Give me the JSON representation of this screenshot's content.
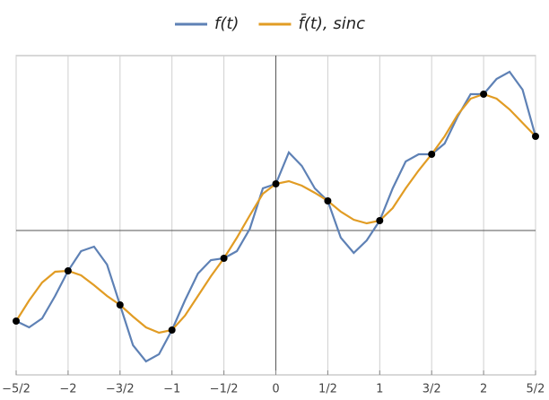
{
  "chart_data": {
    "type": "line",
    "x": [
      -2.5,
      -2.375,
      -2.25,
      -2.125,
      -2,
      -1.875,
      -1.75,
      -1.625,
      -1.5,
      -1.375,
      -1.25,
      -1.125,
      -1,
      -0.875,
      -0.75,
      -0.625,
      -0.5,
      -0.375,
      -0.25,
      -0.125,
      0,
      0.125,
      0.25,
      0.375,
      0.5,
      0.625,
      0.75,
      0.875,
      1,
      1.125,
      1.25,
      1.375,
      1.5,
      1.625,
      1.75,
      1.875,
      2,
      2.125,
      2.25,
      2.375,
      2.5
    ],
    "series": [
      {
        "name": "f(t)",
        "color": "#5e81b5",
        "values": [
          -1.01,
          -1.08,
          -0.98,
          -0.73,
          -0.45,
          -0.23,
          -0.18,
          -0.38,
          -0.83,
          -1.28,
          -1.46,
          -1.38,
          -1.11,
          -0.78,
          -0.48,
          -0.33,
          -0.31,
          -0.23,
          0.02,
          0.47,
          0.52,
          0.87,
          0.72,
          0.47,
          0.33,
          -0.08,
          -0.25,
          -0.11,
          0.11,
          0.47,
          0.77,
          0.85,
          0.85,
          0.97,
          1.27,
          1.52,
          1.52,
          1.69,
          1.77,
          1.57,
          1.05
        ]
      },
      {
        "name": "f̄(t), sinc",
        "color": "#e19c24",
        "values": [
          -1.01,
          -0.78,
          -0.58,
          -0.46,
          -0.45,
          -0.5,
          -0.61,
          -0.73,
          -0.83,
          -0.96,
          -1.08,
          -1.14,
          -1.11,
          -0.95,
          -0.73,
          -0.51,
          -0.31,
          -0.08,
          0.17,
          0.41,
          0.52,
          0.55,
          0.5,
          0.42,
          0.33,
          0.21,
          0.12,
          0.08,
          0.11,
          0.25,
          0.47,
          0.67,
          0.85,
          1.05,
          1.29,
          1.47,
          1.52,
          1.47,
          1.35,
          1.2,
          1.05
        ]
      }
    ],
    "markers": {
      "color": "#000000",
      "values": [
        -1.01,
        null,
        null,
        null,
        -0.45,
        null,
        null,
        null,
        -0.83,
        null,
        null,
        null,
        -1.11,
        null,
        null,
        null,
        -0.31,
        null,
        null,
        null,
        0.52,
        null,
        null,
        null,
        0.33,
        null,
        null,
        null,
        0.11,
        null,
        null,
        null,
        0.85,
        null,
        null,
        null,
        1.52,
        null,
        null,
        null,
        1.05
      ]
    },
    "xlim": [
      -2.5,
      2.5
    ],
    "ylim": [
      -1.61,
      1.95
    ],
    "xticks": [
      {
        "value": -2.5,
        "label": "−5/2"
      },
      {
        "value": -2,
        "label": "−2"
      },
      {
        "value": -1.5,
        "label": "−3/2"
      },
      {
        "value": -1,
        "label": "−1"
      },
      {
        "value": -0.5,
        "label": "−1/2"
      },
      0,
      {
        "value": 0.5,
        "label": "1/2"
      },
      1,
      {
        "value": 1.5,
        "label": "3/2"
      },
      2,
      {
        "value": 2.5,
        "label": "5/2"
      }
    ],
    "grid": true
  }
}
